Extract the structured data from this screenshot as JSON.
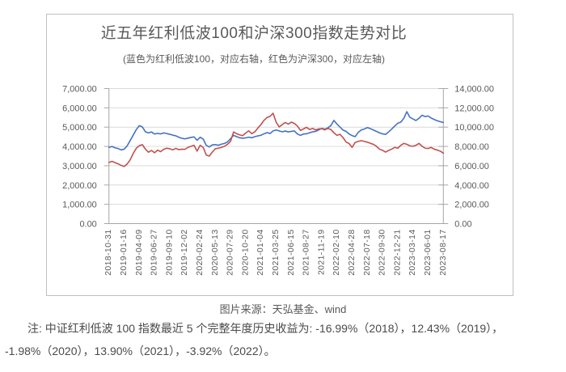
{
  "chart": {
    "title": "近五年红利低波100和沪深300指数走势对比",
    "subtitle": "(蓝色为红利低波100，对应右轴，红色为沪深300，对应左轴)"
  },
  "caption": "图片来源：天弘基金、wind",
  "note": {
    "line1": "注: 中证红利低波 100 指数最近 5 个完整年度历史收益为: -16.99%（2018），12.43%（2019），",
    "line2": "-1.98%（2020），13.90%（2021），-3.92%（2022）。"
  },
  "chart_data": {
    "type": "line",
    "title": "近五年红利低波100和沪深300指数走势对比",
    "subtitle": "(蓝色为红利低波100，对应右轴，红色为沪深300，对应左轴)",
    "grid": true,
    "legend": "none",
    "x_tick_labels": [
      "2018-10-31",
      "2019-01-16",
      "2019-04-09",
      "2019-06-27",
      "2019-09-10",
      "2019-12-02",
      "2020-02-24",
      "2020-05-13",
      "2020-07-29",
      "2020-10-20",
      "2021-01-04",
      "2021-03-25",
      "2021-06-15",
      "2021-08-27",
      "2021-11-19",
      "2022-02-10",
      "2022-04-28",
      "2022-07-18",
      "2022-09-30",
      "2022-12-21",
      "2023-03-14",
      "2023-06-01",
      "2023-08-17"
    ],
    "left_axis": {
      "min": 0,
      "max": 7000,
      "step": 1000,
      "tick_labels_top_down": [
        "7,000.00",
        "6,000.00",
        "5,000.00",
        "4,000.00",
        "3,000.00",
        "2,000.00",
        "1,000.00",
        "0.00"
      ]
    },
    "right_axis": {
      "min": 0,
      "max": 14000,
      "step": 2000,
      "tick_labels_top_down": [
        "14,000.00",
        "12,000.00",
        "10,000.00",
        "8,000.00",
        "6,000.00",
        "4,000.00",
        "2,000.00",
        "0.00"
      ]
    },
    "series": [
      {
        "name": "红利低波100",
        "axis": "right",
        "color": "#4472C4",
        "values": [
          7900,
          7990,
          7860,
          7780,
          7640,
          7720,
          8060,
          8620,
          9180,
          9760,
          10150,
          10020,
          9520,
          9400,
          9500,
          9280,
          9360,
          9290,
          9400,
          9330,
          9260,
          9170,
          9100,
          8950,
          8840,
          8780,
          8860,
          8930,
          8990,
          8640,
          8950,
          8760,
          8120,
          7950,
          8160,
          8190,
          8120,
          8230,
          8310,
          8460,
          8800,
          9150,
          9010,
          8900,
          8850,
          8880,
          8960,
          8900,
          9010,
          9090,
          9160,
          9310,
          9430,
          9340,
          9610,
          9700,
          9610,
          9520,
          9590,
          9510,
          9560,
          9610,
          9290,
          9140,
          9290,
          9310,
          9420,
          9510,
          9560,
          9710,
          9870,
          9790,
          9920,
          10160,
          10700,
          10320,
          10010,
          9700,
          9560,
          9290,
          9120,
          9020,
          9460,
          9700,
          9810,
          9950,
          9840,
          9700,
          9560,
          9410,
          9310,
          9240,
          9510,
          9800,
          10110,
          10400,
          10520,
          10920,
          11600,
          11020,
          10850,
          10680,
          10920,
          11230,
          11090,
          11160,
          10940,
          10790,
          10660,
          10560,
          10480
        ]
      },
      {
        "name": "沪深300",
        "axis": "left",
        "color": "#C0504D",
        "values": [
          3170,
          3230,
          3160,
          3100,
          3020,
          2960,
          3090,
          3310,
          3640,
          3910,
          4040,
          4090,
          3860,
          3700,
          3790,
          3670,
          3810,
          3730,
          3850,
          3910,
          3880,
          3820,
          3900,
          3830,
          3860,
          3850,
          3950,
          4010,
          4060,
          3760,
          4060,
          3950,
          3560,
          3500,
          3710,
          3880,
          3910,
          3950,
          4010,
          4110,
          4260,
          4750,
          4660,
          4600,
          4560,
          4700,
          4810,
          4660,
          4760,
          4960,
          5130,
          5350,
          5500,
          5560,
          5720,
          5260,
          5010,
          5130,
          5240,
          5160,
          5260,
          5190,
          5060,
          4830,
          4910,
          4990,
          4880,
          4930,
          4860,
          4910,
          4920,
          4860,
          4930,
          4880,
          4710,
          4570,
          4630,
          4460,
          4230,
          4150,
          3950,
          4210,
          4260,
          4300,
          4260,
          4220,
          4160,
          4110,
          4010,
          3860,
          3800,
          3710,
          3790,
          3860,
          3950,
          3910,
          4060,
          4160,
          4110,
          4030,
          4010,
          4060,
          4160,
          4010,
          3910,
          3890,
          3950,
          3860,
          3810,
          3760,
          3650
        ]
      }
    ]
  }
}
